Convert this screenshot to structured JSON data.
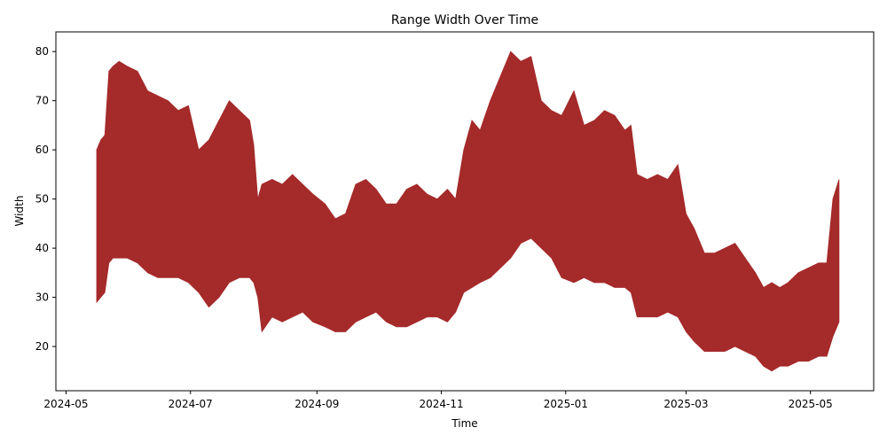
{
  "chart_data": {
    "type": "area",
    "title": "Range Width Over Time",
    "xlabel": "Time",
    "ylabel": "Width",
    "x_range": [
      "2024-04-26",
      "2025-06-01"
    ],
    "ylim": [
      11,
      84
    ],
    "yticks": [
      20,
      30,
      40,
      50,
      60,
      70,
      80
    ],
    "xticks": [
      "2024-05",
      "2024-07",
      "2024-09",
      "2024-11",
      "2025-01",
      "2025-03",
      "2025-05"
    ],
    "grid": false,
    "legend": "none",
    "fill_color": "#a52a2a",
    "series": [
      {
        "x": [
          "2024-05-16",
          "2024-05-18",
          "2024-05-20",
          "2024-05-22",
          "2024-05-24",
          "2024-05-27",
          "2024-05-31",
          "2024-06-05",
          "2024-06-10",
          "2024-06-15",
          "2024-06-20",
          "2024-06-25",
          "2024-06-30",
          "2024-07-05",
          "2024-07-10",
          "2024-07-15",
          "2024-07-20",
          "2024-07-25",
          "2024-07-30",
          "2024-08-01",
          "2024-08-03",
          "2024-08-05",
          "2024-08-10",
          "2024-08-15",
          "2024-08-20",
          "2024-08-25",
          "2024-08-30",
          "2024-09-05",
          "2024-09-10",
          "2024-09-15",
          "2024-09-20",
          "2024-09-25",
          "2024-09-30",
          "2024-10-05",
          "2024-10-10",
          "2024-10-15",
          "2024-10-20",
          "2024-10-25",
          "2024-10-30",
          "2024-11-04",
          "2024-11-08",
          "2024-11-12",
          "2024-11-16",
          "2024-11-20",
          "2024-11-25",
          "2024-11-30",
          "2024-12-05",
          "2024-12-10",
          "2024-12-15",
          "2024-12-20",
          "2024-12-25",
          "2024-12-30",
          "2025-01-05",
          "2025-01-10",
          "2025-01-15",
          "2025-01-20",
          "2025-01-25",
          "2025-01-30",
          "2025-02-02",
          "2025-02-05",
          "2025-02-10",
          "2025-02-15",
          "2025-02-20",
          "2025-02-25",
          "2025-03-01",
          "2025-03-05",
          "2025-03-10",
          "2025-03-15",
          "2025-03-20",
          "2025-03-25",
          "2025-03-30",
          "2025-04-04",
          "2025-04-08",
          "2025-04-12",
          "2025-04-16",
          "2025-04-20",
          "2025-04-25",
          "2025-04-30",
          "2025-05-05",
          "2025-05-09",
          "2025-05-12",
          "2025-05-15"
        ],
        "upper": [
          60,
          62,
          63,
          76,
          77,
          78,
          77,
          76,
          72,
          71,
          70,
          68,
          69,
          60,
          62,
          66,
          70,
          68,
          66,
          61,
          50,
          53,
          54,
          53,
          55,
          53,
          51,
          49,
          46,
          47,
          53,
          54,
          52,
          49,
          49,
          52,
          53,
          51,
          50,
          52,
          50,
          60,
          66,
          64,
          70,
          75,
          80,
          78,
          79,
          70,
          68,
          67,
          72,
          65,
          66,
          68,
          67,
          64,
          65,
          55,
          54,
          55,
          54,
          57,
          47,
          44,
          39,
          39,
          40,
          41,
          38,
          35,
          32,
          33,
          32,
          33,
          35,
          36,
          37,
          37,
          50,
          54
        ],
        "lower": [
          29,
          30,
          31,
          37,
          38,
          38,
          38,
          37,
          35,
          34,
          34,
          34,
          33,
          31,
          28,
          30,
          33,
          34,
          34,
          33,
          30,
          23,
          26,
          25,
          26,
          27,
          25,
          24,
          23,
          23,
          25,
          26,
          27,
          25,
          24,
          24,
          25,
          26,
          26,
          25,
          27,
          31,
          32,
          33,
          34,
          36,
          38,
          41,
          42,
          40,
          38,
          34,
          33,
          34,
          33,
          33,
          32,
          32,
          31,
          26,
          26,
          26,
          27,
          26,
          23,
          21,
          19,
          19,
          19,
          20,
          19,
          18,
          16,
          15,
          16,
          16,
          17,
          17,
          18,
          18,
          22,
          25
        ]
      }
    ]
  }
}
